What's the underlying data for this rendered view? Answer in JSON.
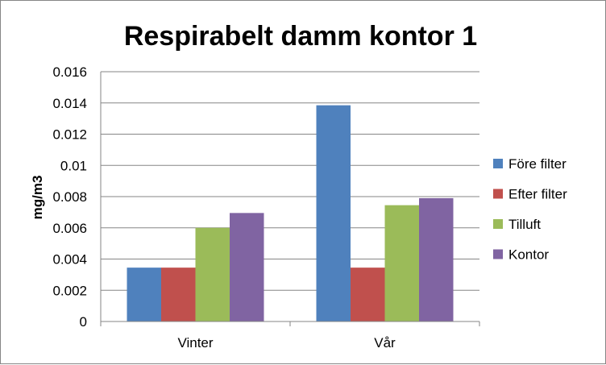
{
  "chart_data": {
    "type": "bar",
    "title": "Respirabelt damm kontor 1",
    "xlabel": "",
    "ylabel": "mg/m3",
    "categories": [
      "Vinter",
      "Vår"
    ],
    "series": [
      {
        "name": "Före filter",
        "values": [
          0.00345,
          0.01385
        ],
        "color": "#4F81BD"
      },
      {
        "name": "Efter filter",
        "values": [
          0.00345,
          0.00345
        ],
        "color": "#C0504D"
      },
      {
        "name": "Tilluft",
        "values": [
          0.006,
          0.00745
        ],
        "color": "#9BBB59"
      },
      {
        "name": "Kontor",
        "values": [
          0.00695,
          0.0079
        ],
        "color": "#8064A2"
      }
    ],
    "yticks": [
      "0",
      "0.002",
      "0.004",
      "0.006",
      "0.008",
      "0.01",
      "0.012",
      "0.014",
      "0.016"
    ],
    "ylim": [
      0,
      0.016
    ],
    "grid": true,
    "legend_position": "right"
  }
}
